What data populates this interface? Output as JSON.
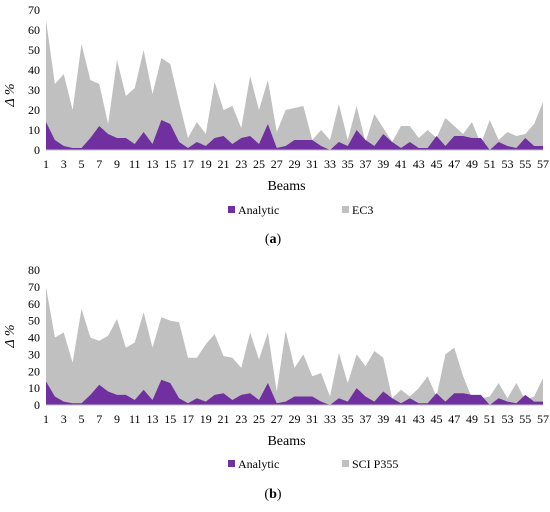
{
  "chart_data": [
    {
      "type": "area",
      "title": "",
      "xlabel": "Beams",
      "ylabel": "Δ %",
      "ylim": [
        0,
        70
      ],
      "yticks": [
        0,
        10,
        20,
        30,
        40,
        50,
        60,
        70
      ],
      "xlim": [
        1,
        57
      ],
      "xticks": [
        1,
        3,
        5,
        7,
        9,
        11,
        13,
        15,
        17,
        19,
        21,
        23,
        25,
        27,
        29,
        31,
        33,
        35,
        37,
        39,
        41,
        43,
        45,
        47,
        49,
        51,
        53,
        55,
        57
      ],
      "grid": false,
      "legend_position": "bottom",
      "caption_letter": "a",
      "series": [
        {
          "name": "EC3",
          "color": "#c0c0c0",
          "values": [
            65,
            33,
            38,
            20,
            53,
            35,
            33,
            13,
            45,
            27,
            31,
            50,
            28,
            46,
            43,
            24,
            6,
            14,
            8,
            34,
            20,
            22,
            11,
            37,
            20,
            35,
            9,
            20,
            21,
            22,
            5,
            10,
            5,
            23,
            5,
            22,
            4,
            18,
            11,
            4,
            12,
            12,
            6,
            10,
            6,
            16,
            12,
            8,
            14,
            3,
            15,
            5,
            9,
            7,
            8,
            13,
            24
          ]
        },
        {
          "name": "Analytic",
          "color": "#7030a0",
          "values": [
            14,
            5,
            2,
            1,
            1,
            6,
            12,
            8,
            6,
            6,
            3,
            9,
            3,
            15,
            13,
            4,
            1,
            4,
            2,
            6,
            7,
            3,
            6,
            7,
            3,
            13,
            1,
            2,
            5,
            5,
            5,
            2,
            0,
            4,
            2,
            10,
            5,
            2,
            8,
            4,
            1,
            4,
            1,
            1,
            7,
            2,
            7,
            7,
            6,
            6,
            0,
            4,
            2,
            1,
            6,
            2,
            2
          ]
        }
      ]
    },
    {
      "type": "area",
      "title": "",
      "xlabel": "Beams",
      "ylabel": "Δ %",
      "ylim": [
        0,
        80
      ],
      "yticks": [
        0,
        10,
        20,
        30,
        40,
        50,
        60,
        70,
        80
      ],
      "xlim": [
        1,
        57
      ],
      "xticks": [
        1,
        3,
        5,
        7,
        9,
        11,
        13,
        15,
        17,
        19,
        21,
        23,
        25,
        27,
        29,
        31,
        33,
        35,
        37,
        39,
        41,
        43,
        45,
        47,
        49,
        51,
        53,
        55,
        57
      ],
      "grid": false,
      "legend_position": "bottom",
      "caption_letter": "b",
      "series": [
        {
          "name": "SCI P355",
          "color": "#c0c0c0",
          "values": [
            70,
            40,
            43,
            25,
            57,
            40,
            38,
            41,
            51,
            34,
            37,
            55,
            34,
            52,
            50,
            49,
            28,
            28,
            36,
            42,
            29,
            28,
            22,
            43,
            27,
            43,
            8,
            44,
            22,
            30,
            17,
            19,
            5,
            31,
            13,
            30,
            23,
            32,
            28,
            4,
            9,
            5,
            10,
            17,
            5,
            30,
            34,
            17,
            4,
            4,
            5,
            13,
            4,
            13,
            3,
            5,
            16
          ]
        },
        {
          "name": "Analytic",
          "color": "#7030a0",
          "values": [
            14,
            5,
            2,
            1,
            1,
            6,
            12,
            8,
            6,
            6,
            3,
            9,
            3,
            15,
            13,
            4,
            1,
            4,
            2,
            6,
            7,
            3,
            6,
            7,
            3,
            13,
            1,
            2,
            5,
            5,
            5,
            2,
            0,
            4,
            2,
            10,
            5,
            2,
            8,
            4,
            1,
            4,
            1,
            1,
            7,
            2,
            7,
            7,
            6,
            6,
            0,
            4,
            2,
            1,
            6,
            2,
            2
          ]
        }
      ]
    }
  ]
}
